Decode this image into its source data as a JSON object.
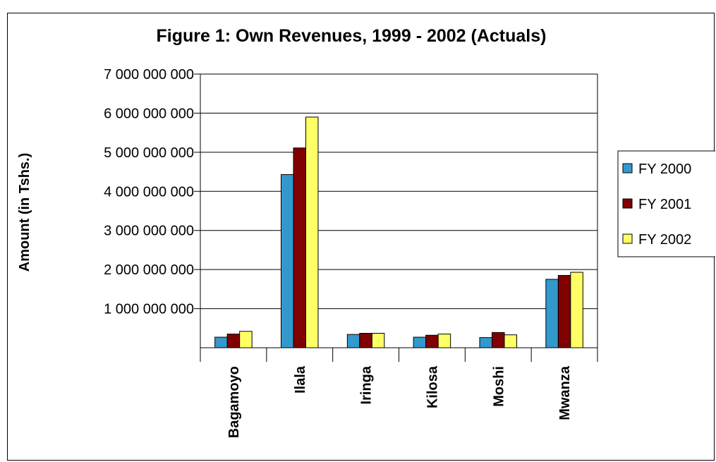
{
  "chart_data": {
    "type": "bar",
    "title": "Figure 1: Own Revenues, 1999 - 2002 (Actuals)",
    "ylabel": "Amount (in Tshs.)",
    "xlabel": "",
    "ylim": [
      0,
      7000000000
    ],
    "yticks": [
      {
        "value": 1000000000,
        "label": "1 000 000 000"
      },
      {
        "value": 2000000000,
        "label": "2 000 000 000"
      },
      {
        "value": 3000000000,
        "label": "3 000 000 000"
      },
      {
        "value": 4000000000,
        "label": "4 000 000 000"
      },
      {
        "value": 5000000000,
        "label": "5 000 000 000"
      },
      {
        "value": 6000000000,
        "label": "6 000 000 000"
      },
      {
        "value": 7000000000,
        "label": "7 000 000 000"
      }
    ],
    "grid": true,
    "legend_position": "right",
    "categories": [
      "Bagamoyo",
      "Ilala",
      "Iringa",
      "Kilosa",
      "Moshi",
      "Mwanza"
    ],
    "series": [
      {
        "name": "FY 2000",
        "color": "#3399cc",
        "values": [
          270000000,
          4430000000,
          340000000,
          270000000,
          260000000,
          1750000000
        ]
      },
      {
        "name": "FY 2001",
        "color": "#800000",
        "values": [
          350000000,
          5110000000,
          370000000,
          320000000,
          390000000,
          1850000000
        ]
      },
      {
        "name": "FY 2002",
        "color": "#ffff66",
        "values": [
          420000000,
          5900000000,
          370000000,
          350000000,
          330000000,
          1930000000
        ]
      }
    ]
  }
}
